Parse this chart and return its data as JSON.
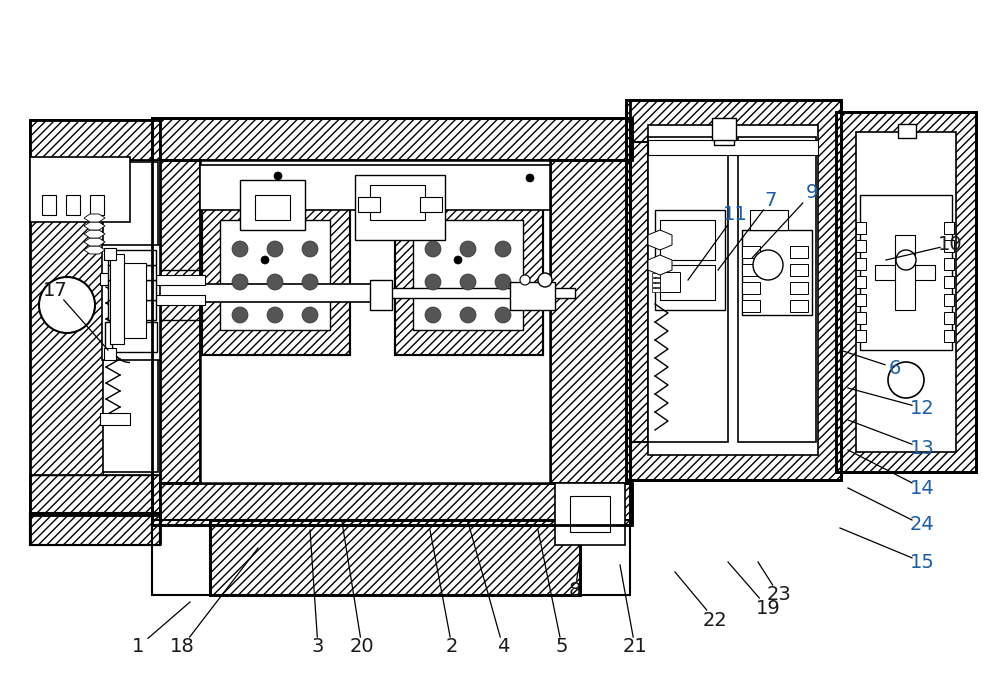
{
  "background": "#ffffff",
  "line_color": "#000000",
  "label_color_default": "#1a1a1a",
  "label_color_blue": "#1a5fa8",
  "label_color_gold": "#b8960c",
  "figsize": [
    10.0,
    7.0
  ],
  "dpi": 100,
  "hatch_density": "////",
  "dot_hatch": "....",
  "labels": [
    [
      "18",
      182,
      647,
      258,
      548,
      false
    ],
    [
      "3",
      318,
      647,
      310,
      530,
      false
    ],
    [
      "20",
      362,
      647,
      342,
      522,
      false
    ],
    [
      "2",
      452,
      647,
      430,
      530,
      false
    ],
    [
      "4",
      503,
      647,
      468,
      522,
      false
    ],
    [
      "5",
      562,
      647,
      538,
      530,
      false
    ],
    [
      "21",
      635,
      647,
      620,
      565,
      false
    ],
    [
      "11",
      735,
      215,
      688,
      280,
      true
    ],
    [
      "7",
      771,
      200,
      718,
      270,
      true
    ],
    [
      "9",
      812,
      193,
      752,
      258,
      true
    ],
    [
      "10",
      950,
      245,
      886,
      260,
      false
    ],
    [
      "6",
      895,
      368,
      840,
      350,
      true
    ],
    [
      "12",
      922,
      408,
      848,
      388,
      true
    ],
    [
      "13",
      922,
      448,
      848,
      420,
      true
    ],
    [
      "14",
      922,
      488,
      848,
      450,
      true
    ],
    [
      "24",
      922,
      525,
      848,
      488,
      true
    ],
    [
      "15",
      922,
      562,
      840,
      528,
      true
    ],
    [
      "17",
      55,
      290,
      108,
      350,
      false
    ],
    [
      "1",
      138,
      647,
      190,
      602,
      false
    ],
    [
      "8",
      575,
      590,
      580,
      560,
      false
    ],
    [
      "19",
      768,
      608,
      728,
      562,
      false
    ],
    [
      "22",
      715,
      620,
      675,
      572,
      false
    ],
    [
      "23",
      779,
      595,
      758,
      562,
      false
    ]
  ]
}
